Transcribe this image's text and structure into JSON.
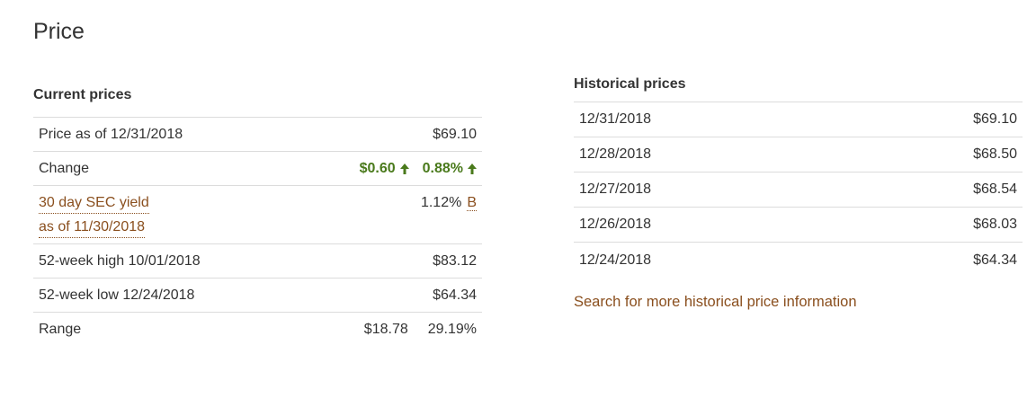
{
  "page": {
    "title": "Price"
  },
  "current_prices": {
    "heading": "Current prices",
    "price_as_of": {
      "label": "Price as of 12/31/2018",
      "value": "$69.10"
    },
    "change": {
      "label": "Change",
      "amount": "$0.60",
      "percent": "0.88%",
      "direction": "up",
      "color": "#4a7a1c"
    },
    "sec_yield": {
      "label_line1": "30 day SEC yield",
      "label_line2": "as of 11/30/2018",
      "value": "1.12%",
      "footnote": "B"
    },
    "high_52": {
      "label": "52-week high 10/01/2018",
      "value": "$83.12"
    },
    "low_52": {
      "label": "52-week low 12/24/2018",
      "value": "$64.34"
    },
    "range": {
      "label": "Range",
      "amount": "$18.78",
      "percent": "29.19%"
    }
  },
  "historical_prices": {
    "heading": "Historical prices",
    "rows": [
      {
        "date": "12/31/2018",
        "price": "$69.10"
      },
      {
        "date": "12/28/2018",
        "price": "$68.50"
      },
      {
        "date": "12/27/2018",
        "price": "$68.54"
      },
      {
        "date": "12/26/2018",
        "price": "$68.03"
      },
      {
        "date": "12/24/2018",
        "price": "$64.34"
      }
    ],
    "more_link": "Search for more historical price information"
  },
  "colors": {
    "link": "#8a4f1e",
    "positive": "#4a7a1c",
    "divider": "#dcdcdc",
    "text": "#333333"
  }
}
